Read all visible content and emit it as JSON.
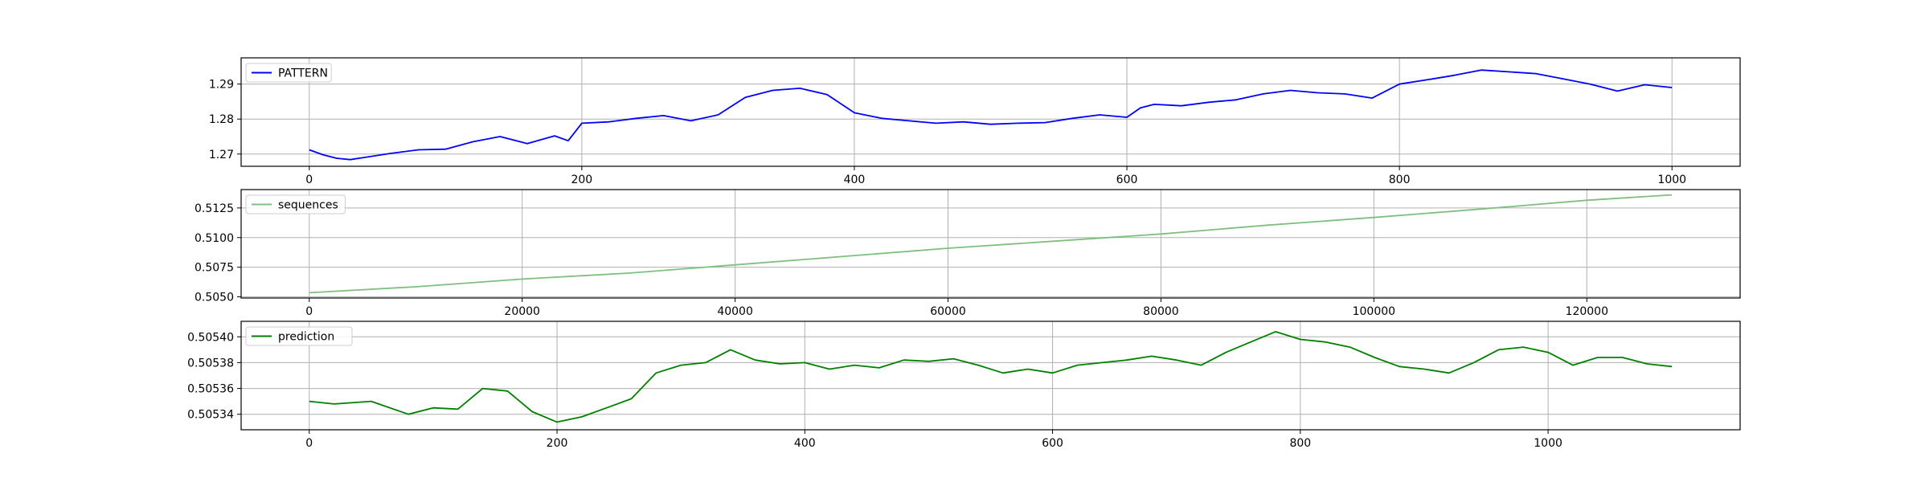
{
  "chart_data": [
    {
      "type": "line",
      "x_range": [
        0,
        1000
      ],
      "xlim": [
        -50,
        1050
      ],
      "ylim": [
        1.2665,
        1.2975
      ],
      "x_ticks": [
        0,
        200,
        400,
        600,
        800,
        1000
      ],
      "x_tick_labels": [
        "0",
        "200",
        "400",
        "600",
        "800",
        "1000"
      ],
      "y_ticks": [
        1.27,
        1.28,
        1.29
      ],
      "y_tick_labels": [
        "1.27",
        "1.28",
        "1.29"
      ],
      "grid": true,
      "legend_position": "upper-left",
      "series": [
        {
          "name": "PATTERN",
          "color": "#0000ff",
          "values": [
            [
              0,
              1.2712
            ],
            [
              10,
              1.2698
            ],
            [
              20,
              1.2688
            ],
            [
              30,
              1.2684
            ],
            [
              40,
              1.269
            ],
            [
              60,
              1.2702
            ],
            [
              80,
              1.2712
            ],
            [
              100,
              1.2714
            ],
            [
              120,
              1.2735
            ],
            [
              140,
              1.275
            ],
            [
              160,
              1.273
            ],
            [
              180,
              1.2752
            ],
            [
              190,
              1.2738
            ],
            [
              200,
              1.2788
            ],
            [
              220,
              1.2792
            ],
            [
              240,
              1.2802
            ],
            [
              260,
              1.281
            ],
            [
              280,
              1.2795
            ],
            [
              300,
              1.2812
            ],
            [
              320,
              1.2862
            ],
            [
              340,
              1.2882
            ],
            [
              360,
              1.2888
            ],
            [
              380,
              1.287
            ],
            [
              400,
              1.2818
            ],
            [
              420,
              1.2802
            ],
            [
              440,
              1.2795
            ],
            [
              460,
              1.2788
            ],
            [
              480,
              1.2792
            ],
            [
              500,
              1.2785
            ],
            [
              520,
              1.2788
            ],
            [
              540,
              1.279
            ],
            [
              560,
              1.2802
            ],
            [
              580,
              1.2812
            ],
            [
              600,
              1.2805
            ],
            [
              610,
              1.2832
            ],
            [
              620,
              1.2842
            ],
            [
              640,
              1.2838
            ],
            [
              660,
              1.2848
            ],
            [
              680,
              1.2855
            ],
            [
              700,
              1.2872
            ],
            [
              720,
              1.2882
            ],
            [
              740,
              1.2875
            ],
            [
              760,
              1.2872
            ],
            [
              780,
              1.286
            ],
            [
              800,
              1.29
            ],
            [
              820,
              1.2912
            ],
            [
              840,
              1.2925
            ],
            [
              860,
              1.294
            ],
            [
              880,
              1.2935
            ],
            [
              900,
              1.293
            ],
            [
              920,
              1.2915
            ],
            [
              940,
              1.29
            ],
            [
              960,
              1.288
            ],
            [
              980,
              1.2898
            ],
            [
              1000,
              1.289
            ]
          ]
        }
      ]
    },
    {
      "type": "line",
      "x_range": [
        0,
        128000
      ],
      "xlim": [
        -6400,
        134400
      ],
      "ylim": [
        0.5049,
        0.51405
      ],
      "x_ticks": [
        0,
        20000,
        40000,
        60000,
        80000,
        100000,
        120000
      ],
      "x_tick_labels": [
        "0",
        "20000",
        "40000",
        "60000",
        "80000",
        "100000",
        "120000"
      ],
      "y_ticks": [
        0.505,
        0.5075,
        0.51,
        0.5125
      ],
      "y_tick_labels": [
        "0.5050",
        "0.5075",
        "0.5100",
        "0.5125"
      ],
      "grid": true,
      "legend_position": "upper-left",
      "series": [
        {
          "name": "sequences",
          "color": "#7fbf7f",
          "values": [
            [
              0,
              0.50535
            ],
            [
              10000,
              0.50585
            ],
            [
              20000,
              0.5065
            ],
            [
              30000,
              0.507
            ],
            [
              40000,
              0.5077
            ],
            [
              50000,
              0.5084
            ],
            [
              60000,
              0.5091
            ],
            [
              70000,
              0.5097
            ],
            [
              80000,
              0.5103
            ],
            [
              90000,
              0.51105
            ],
            [
              100000,
              0.5117
            ],
            [
              110000,
              0.5124
            ],
            [
              120000,
              0.51315
            ],
            [
              128000,
              0.5136
            ]
          ]
        }
      ]
    },
    {
      "type": "line",
      "x_range": [
        0,
        1100
      ],
      "xlim": [
        -55,
        1155
      ],
      "ylim": [
        0.505328,
        0.505412
      ],
      "x_ticks": [
        0,
        200,
        400,
        600,
        800,
        1000
      ],
      "x_tick_labels": [
        "0",
        "200",
        "400",
        "600",
        "800",
        "1000"
      ],
      "y_ticks": [
        0.50534,
        0.50536,
        0.50538,
        0.5054
      ],
      "y_tick_labels": [
        "0.50534",
        "0.50536",
        "0.50538",
        "0.50540"
      ],
      "grid": true,
      "legend_position": "upper-left",
      "series": [
        {
          "name": "prediction",
          "color": "#008000",
          "values": [
            [
              0,
              0.50535
            ],
            [
              20,
              0.505348
            ],
            [
              50,
              0.50535
            ],
            [
              80,
              0.50534
            ],
            [
              100,
              0.505345
            ],
            [
              120,
              0.505344
            ],
            [
              140,
              0.50536
            ],
            [
              160,
              0.505358
            ],
            [
              180,
              0.505342
            ],
            [
              200,
              0.505334
            ],
            [
              220,
              0.505338
            ],
            [
              240,
              0.505345
            ],
            [
              260,
              0.505352
            ],
            [
              280,
              0.505372
            ],
            [
              300,
              0.505378
            ],
            [
              320,
              0.50538
            ],
            [
              340,
              0.50539
            ],
            [
              360,
              0.505382
            ],
            [
              380,
              0.505379
            ],
            [
              400,
              0.50538
            ],
            [
              420,
              0.505375
            ],
            [
              440,
              0.505378
            ],
            [
              460,
              0.505376
            ],
            [
              480,
              0.505382
            ],
            [
              500,
              0.505381
            ],
            [
              520,
              0.505383
            ],
            [
              540,
              0.505378
            ],
            [
              560,
              0.505372
            ],
            [
              580,
              0.505375
            ],
            [
              600,
              0.505372
            ],
            [
              620,
              0.505378
            ],
            [
              640,
              0.50538
            ],
            [
              660,
              0.505382
            ],
            [
              680,
              0.505385
            ],
            [
              700,
              0.505382
            ],
            [
              720,
              0.505378
            ],
            [
              740,
              0.505388
            ],
            [
              760,
              0.505396
            ],
            [
              780,
              0.505404
            ],
            [
              800,
              0.505398
            ],
            [
              820,
              0.505396
            ],
            [
              840,
              0.505392
            ],
            [
              860,
              0.505384
            ],
            [
              880,
              0.505377
            ],
            [
              900,
              0.505375
            ],
            [
              920,
              0.505372
            ],
            [
              940,
              0.50538
            ],
            [
              960,
              0.50539
            ],
            [
              980,
              0.505392
            ],
            [
              1000,
              0.505388
            ],
            [
              1020,
              0.505378
            ],
            [
              1040,
              0.505384
            ],
            [
              1060,
              0.505384
            ],
            [
              1080,
              0.505379
            ],
            [
              1100,
              0.505377
            ]
          ]
        }
      ]
    }
  ]
}
